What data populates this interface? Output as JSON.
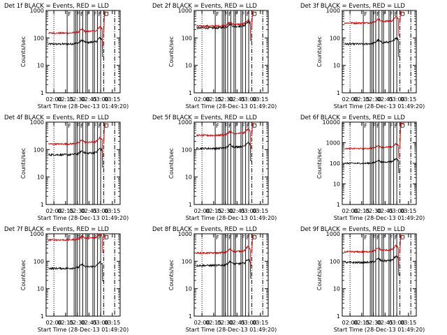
{
  "figure": {
    "description_colors": {
      "events": "#000000",
      "lld": "#cc0000",
      "axes": "#000000"
    },
    "y_tick_labels": [
      "1",
      "10",
      "100",
      "1000"
    ],
    "y_tick_labels_hi": [
      "1",
      "10",
      "100",
      "1000",
      "10000"
    ],
    "x_tick_labels": [
      "02:00",
      "02:15",
      "02:30",
      "02:45",
      "03:00",
      "03:15"
    ],
    "xlabel": "Start Time (28-Dec-13 01:49:20)",
    "ylabel": "Counts/sec",
    "flag_letter": "F",
    "flag_letter_last": "D"
  },
  "chart_data": [
    {
      "type": "line",
      "title": "Det 1f BLACK = Events, RED = LLD",
      "ylim": [
        1,
        1000
      ],
      "scale": "log",
      "xlim_minutes": [
        -10,
        85
      ],
      "series": [
        {
          "name": "Events",
          "level": 60
        },
        {
          "name": "LLD",
          "level": 150
        }
      ]
    },
    {
      "type": "line",
      "title": "Det 2f BLACK = Events, RED = LLD",
      "ylim": [
        1,
        1000
      ],
      "scale": "log",
      "xlim_minutes": [
        -10,
        85
      ],
      "series": [
        {
          "name": "Events",
          "level": 230
        },
        {
          "name": "LLD",
          "level": 270
        }
      ]
    },
    {
      "type": "line",
      "title": "Det 3f BLACK = Events, RED = LLD",
      "ylim": [
        1,
        1000
      ],
      "scale": "log",
      "xlim_minutes": [
        -10,
        85
      ],
      "series": [
        {
          "name": "Events",
          "level": 60
        },
        {
          "name": "LLD",
          "level": 350
        }
      ]
    },
    {
      "type": "line",
      "title": "Det 4f BLACK = Events, RED = LLD",
      "ylim": [
        1,
        1000
      ],
      "scale": "log",
      "xlim_minutes": [
        -10,
        85
      ],
      "series": [
        {
          "name": "Events",
          "level": 65
        },
        {
          "name": "LLD",
          "level": 160
        }
      ]
    },
    {
      "type": "line",
      "title": "Det 5f BLACK = Events, RED = LLD",
      "ylim": [
        1,
        1000
      ],
      "scale": "log",
      "xlim_minutes": [
        -10,
        85
      ],
      "series": [
        {
          "name": "Events",
          "level": 110
        },
        {
          "name": "LLD",
          "level": 330
        }
      ]
    },
    {
      "type": "line",
      "title": "Det 6f BLACK = Events, RED = LLD",
      "ylim": [
        1,
        10000
      ],
      "scale": "log",
      "xlim_minutes": [
        -10,
        85
      ],
      "series": [
        {
          "name": "Events",
          "level": 100
        },
        {
          "name": "LLD",
          "level": 520
        }
      ]
    },
    {
      "type": "line",
      "title": "Det 7f BLACK = Events, RED = LLD",
      "ylim": [
        1,
        1000
      ],
      "scale": "log",
      "xlim_minutes": [
        -10,
        85
      ],
      "series": [
        {
          "name": "Events",
          "level": 55
        },
        {
          "name": "LLD",
          "level": 600
        }
      ]
    },
    {
      "type": "line",
      "title": "Det 8f BLACK = Events, RED = LLD",
      "ylim": [
        1,
        1000
      ],
      "scale": "log",
      "xlim_minutes": [
        -10,
        85
      ],
      "series": [
        {
          "name": "Events",
          "level": 70
        },
        {
          "name": "LLD",
          "level": 200
        }
      ]
    },
    {
      "type": "line",
      "title": "Det 9f BLACK = Events, RED = LLD",
      "ylim": [
        1,
        1000
      ],
      "scale": "log",
      "xlim_minutes": [
        -10,
        85
      ],
      "series": [
        {
          "name": "Events",
          "level": 90
        },
        {
          "name": "LLD",
          "level": 220
        }
      ]
    }
  ]
}
